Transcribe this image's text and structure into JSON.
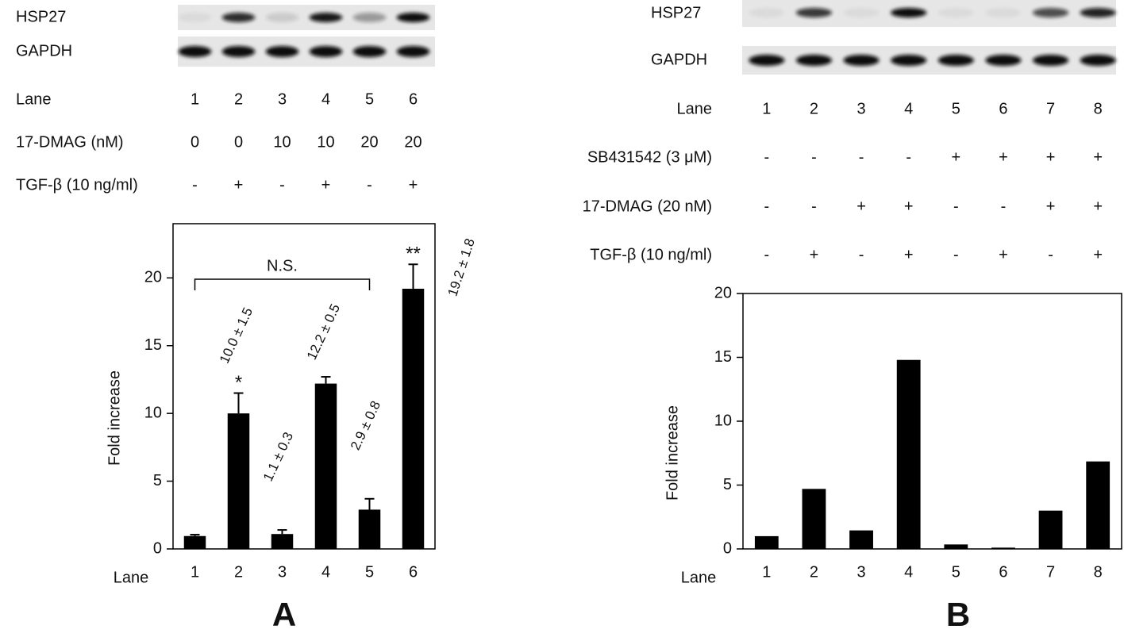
{
  "chart_data": [
    {
      "type": "bar",
      "panel": "A",
      "blots": [
        "HSP27",
        "GAPDH"
      ],
      "conditions": [
        {
          "label": "Lane",
          "values": [
            "1",
            "2",
            "3",
            "4",
            "5",
            "6"
          ]
        },
        {
          "label": "17-DMAG (nM)",
          "values": [
            "0",
            "0",
            "10",
            "10",
            "20",
            "20"
          ]
        },
        {
          "label": "TGF-β (10 ng/ml)",
          "values": [
            "-",
            "+",
            "-",
            "+",
            "-",
            "+"
          ]
        }
      ],
      "categories": [
        "1",
        "2",
        "3",
        "4",
        "5",
        "6"
      ],
      "x_label": "Lane",
      "y_label": "Fold increase",
      "values": [
        0.95,
        10.0,
        1.1,
        12.2,
        2.9,
        19.2
      ],
      "errors": [
        0.1,
        1.5,
        0.3,
        0.5,
        0.8,
        1.8
      ],
      "value_labels": [
        null,
        "10.0 ± 1.5",
        "1.1 ± 0.3",
        "12.2 ± 0.5",
        "2.9 ± 0.8",
        "19.2 ± 1.8"
      ],
      "significance": [
        null,
        "*",
        null,
        null,
        null,
        "**"
      ],
      "bracket": {
        "label": "N.S.",
        "from": 0,
        "to": 4
      },
      "color": "#000000",
      "ylim": [
        0,
        24
      ],
      "yticks": [
        0,
        5,
        10,
        15,
        20
      ]
    },
    {
      "type": "bar",
      "panel": "B",
      "blots": [
        "HSP27",
        "GAPDH"
      ],
      "conditions": [
        {
          "label": "Lane",
          "values": [
            "1",
            "2",
            "3",
            "4",
            "5",
            "6",
            "7",
            "8"
          ]
        },
        {
          "label": "SB431542 (3 μM)",
          "values": [
            "-",
            "-",
            "-",
            "-",
            "+",
            "+",
            "+",
            "+"
          ]
        },
        {
          "label": "17-DMAG (20 nM)",
          "values": [
            "-",
            "-",
            "+",
            "+",
            "-",
            "-",
            "+",
            "+"
          ]
        },
        {
          "label": "TGF-β (10 ng/ml)",
          "values": [
            "-",
            "+",
            "-",
            "+",
            "-",
            "+",
            "-",
            "+"
          ]
        }
      ],
      "categories": [
        "1",
        "2",
        "3",
        "4",
        "5",
        "6",
        "7",
        "8"
      ],
      "x_label": "Lane",
      "y_label": "Fold increase",
      "values": [
        1.0,
        4.7,
        1.45,
        14.8,
        0.35,
        0.1,
        3.0,
        6.85
      ],
      "color": "#000000",
      "ylim": [
        0,
        20
      ],
      "yticks": [
        0,
        5,
        10,
        15,
        20
      ]
    }
  ]
}
